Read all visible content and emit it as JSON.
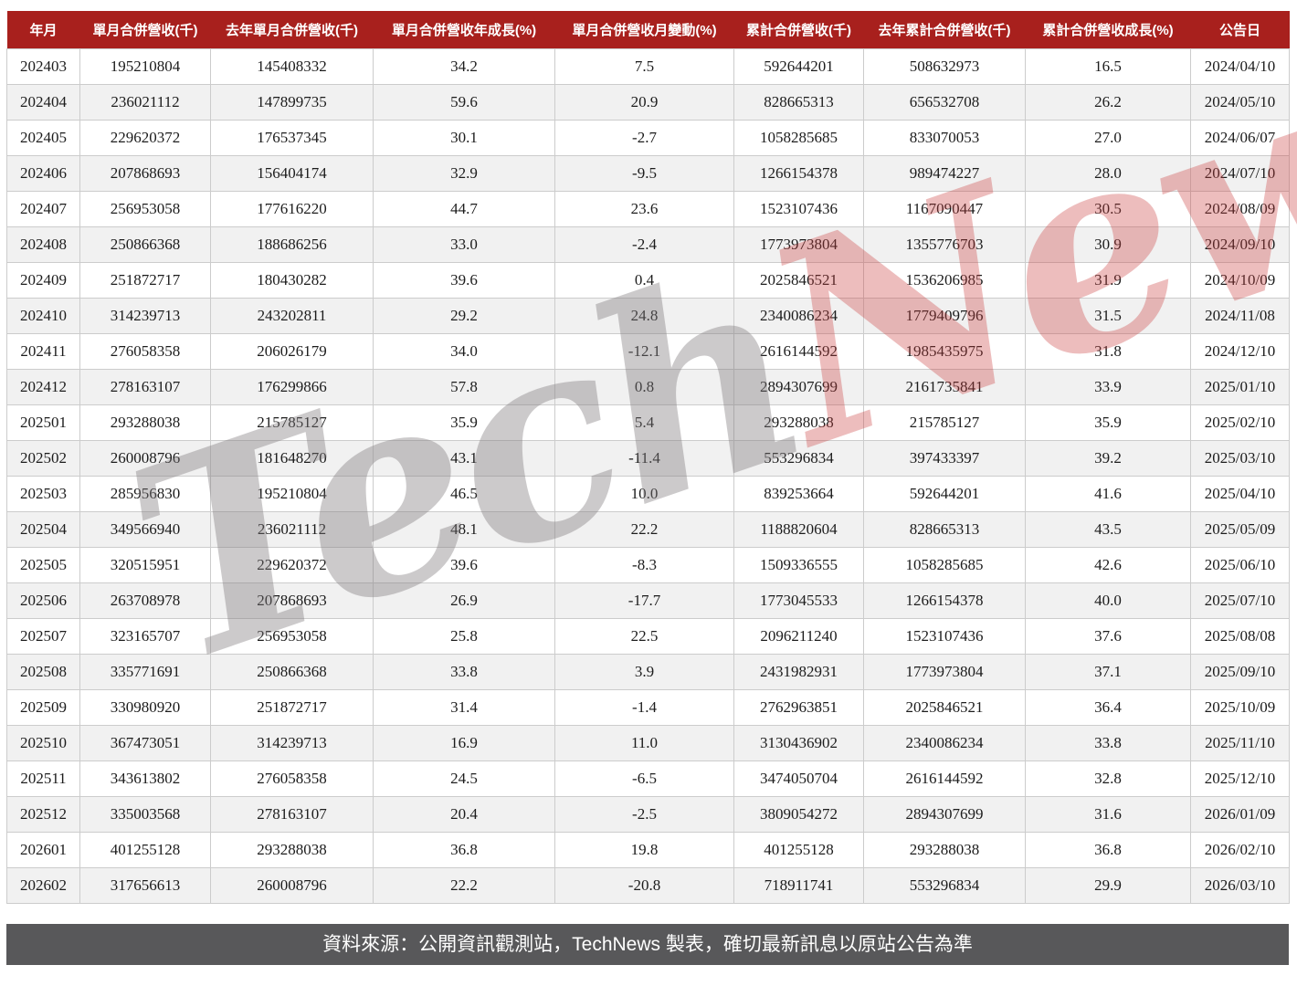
{
  "chart_data": {
    "type": "table",
    "title": "月合併營收表 (TechNews 製表)",
    "columns": [
      "年月",
      "單月合併營收(千)",
      "去年單月合併營收(千)",
      "單月合併營收年成長(%)",
      "單月合併營收月變動(%)",
      "累計合併營收(千)",
      "去年累計合併營收(千)",
      "累計合併營收成長(%)",
      "公告日"
    ],
    "rows": [
      [
        "202403",
        "195210804",
        "145408332",
        "34.2",
        "7.5",
        "592644201",
        "508632973",
        "16.5",
        "2024/04/10"
      ],
      [
        "202404",
        "236021112",
        "147899735",
        "59.6",
        "20.9",
        "828665313",
        "656532708",
        "26.2",
        "2024/05/10"
      ],
      [
        "202405",
        "229620372",
        "176537345",
        "30.1",
        "-2.7",
        "1058285685",
        "833070053",
        "27.0",
        "2024/06/07"
      ],
      [
        "202406",
        "207868693",
        "156404174",
        "32.9",
        "-9.5",
        "1266154378",
        "989474227",
        "28.0",
        "2024/07/10"
      ],
      [
        "202407",
        "256953058",
        "177616220",
        "44.7",
        "23.6",
        "1523107436",
        "1167090447",
        "30.5",
        "2024/08/09"
      ],
      [
        "202408",
        "250866368",
        "188686256",
        "33.0",
        "-2.4",
        "1773973804",
        "1355776703",
        "30.9",
        "2024/09/10"
      ],
      [
        "202409",
        "251872717",
        "180430282",
        "39.6",
        "0.4",
        "2025846521",
        "1536206985",
        "31.9",
        "2024/10/09"
      ],
      [
        "202410",
        "314239713",
        "243202811",
        "29.2",
        "24.8",
        "2340086234",
        "1779409796",
        "31.5",
        "2024/11/08"
      ],
      [
        "202411",
        "276058358",
        "206026179",
        "34.0",
        "-12.1",
        "2616144592",
        "1985435975",
        "31.8",
        "2024/12/10"
      ],
      [
        "202412",
        "278163107",
        "176299866",
        "57.8",
        "0.8",
        "2894307699",
        "2161735841",
        "33.9",
        "2025/01/10"
      ],
      [
        "202501",
        "293288038",
        "215785127",
        "35.9",
        "5.4",
        "293288038",
        "215785127",
        "35.9",
        "2025/02/10"
      ],
      [
        "202502",
        "260008796",
        "181648270",
        "43.1",
        "-11.4",
        "553296834",
        "397433397",
        "39.2",
        "2025/03/10"
      ],
      [
        "202503",
        "285956830",
        "195210804",
        "46.5",
        "10.0",
        "839253664",
        "592644201",
        "41.6",
        "2025/04/10"
      ],
      [
        "202504",
        "349566940",
        "236021112",
        "48.1",
        "22.2",
        "1188820604",
        "828665313",
        "43.5",
        "2025/05/09"
      ],
      [
        "202505",
        "320515951",
        "229620372",
        "39.6",
        "-8.3",
        "1509336555",
        "1058285685",
        "42.6",
        "2025/06/10"
      ],
      [
        "202506",
        "263708978",
        "207868693",
        "26.9",
        "-17.7",
        "1773045533",
        "1266154378",
        "40.0",
        "2025/07/10"
      ],
      [
        "202507",
        "323165707",
        "256953058",
        "25.8",
        "22.5",
        "2096211240",
        "1523107436",
        "37.6",
        "2025/08/08"
      ],
      [
        "202508",
        "335771691",
        "250866368",
        "33.8",
        "3.9",
        "2431982931",
        "1773973804",
        "37.1",
        "2025/09/10"
      ],
      [
        "202509",
        "330980920",
        "251872717",
        "31.4",
        "-1.4",
        "2762963851",
        "2025846521",
        "36.4",
        "2025/10/09"
      ],
      [
        "202510",
        "367473051",
        "314239713",
        "16.9",
        "11.0",
        "3130436902",
        "2340086234",
        "33.8",
        "2025/11/10"
      ],
      [
        "202511",
        "343613802",
        "276058358",
        "24.5",
        "-6.5",
        "3474050704",
        "2616144592",
        "32.8",
        "2025/12/10"
      ],
      [
        "202512",
        "335003568",
        "278163107",
        "20.4",
        "-2.5",
        "3809054272",
        "2894307699",
        "31.6",
        "2026/01/09"
      ],
      [
        "202601",
        "401255128",
        "293288038",
        "36.8",
        "19.8",
        "401255128",
        "293288038",
        "36.8",
        "2026/02/10"
      ],
      [
        "202602",
        "317656613",
        "260008796",
        "22.2",
        "-20.8",
        "718911741",
        "553296834",
        "29.9",
        "2026/03/10"
      ]
    ],
    "layout_hints": {
      "header_style": "dark-red background, white bold text, centered",
      "row_striping": "odd white / even light gray",
      "all_cells_centered": true,
      "grid": "on"
    }
  },
  "watermark": {
    "part1": "Tech",
    "part2": "News"
  },
  "footer": {
    "source_note": "資料來源：公開資訊觀測站，TechNews 製表，確切最新訊息以原站公告為準"
  },
  "colors": {
    "header_bg": "#a8201d",
    "header_text": "#ffffff",
    "stripe_bg": "#f1f1f1",
    "border": "#cccccc",
    "cell_text": "#1c1c1c",
    "footer_bg": "#58585a",
    "footer_text": "#ffffff",
    "watermark_gray": "rgba(128,122,124,0.40)",
    "watermark_red": "rgba(201,62,62,0.34)"
  }
}
